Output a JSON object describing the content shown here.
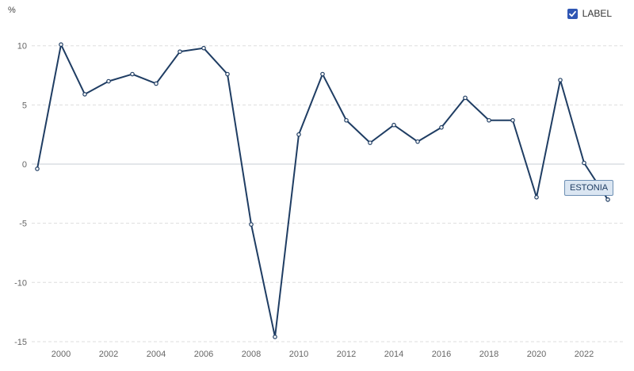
{
  "legend": {
    "label": "LABEL",
    "checked": true,
    "checkbox_color": "#2f56b4"
  },
  "series_tag": "ESTONIA",
  "colors": {
    "line": "#1f3d63",
    "zero_line": "#c7cdd6",
    "grid": "#dddddd"
  },
  "chart_data": {
    "type": "line",
    "title": "",
    "xlabel": "",
    "ylabel": "%",
    "x": [
      1999,
      2000,
      2001,
      2002,
      2003,
      2004,
      2005,
      2006,
      2007,
      2008,
      2009,
      2010,
      2011,
      2012,
      2013,
      2014,
      2015,
      2016,
      2017,
      2018,
      2019,
      2020,
      2021,
      2022,
      2023
    ],
    "xlim": [
      1999,
      2023
    ],
    "x_ticks": [
      "2000",
      "2002",
      "2004",
      "2006",
      "2008",
      "2010",
      "2012",
      "2014",
      "2016",
      "2018",
      "2020",
      "2022"
    ],
    "ylim": [
      -15,
      12
    ],
    "y_ticks": [
      "10",
      "5",
      "0",
      "-5",
      "-10",
      "-15"
    ],
    "grid": true,
    "legend_position": "top-right",
    "series": [
      {
        "name": "ESTONIA",
        "values": [
          -0.4,
          10.1,
          5.9,
          7.0,
          7.6,
          6.8,
          9.5,
          9.8,
          7.6,
          -5.1,
          -14.6,
          2.5,
          7.6,
          3.7,
          1.8,
          3.3,
          1.9,
          3.1,
          5.6,
          3.7,
          3.7,
          -2.8,
          7.1,
          0.1,
          -3.0
        ]
      }
    ]
  }
}
